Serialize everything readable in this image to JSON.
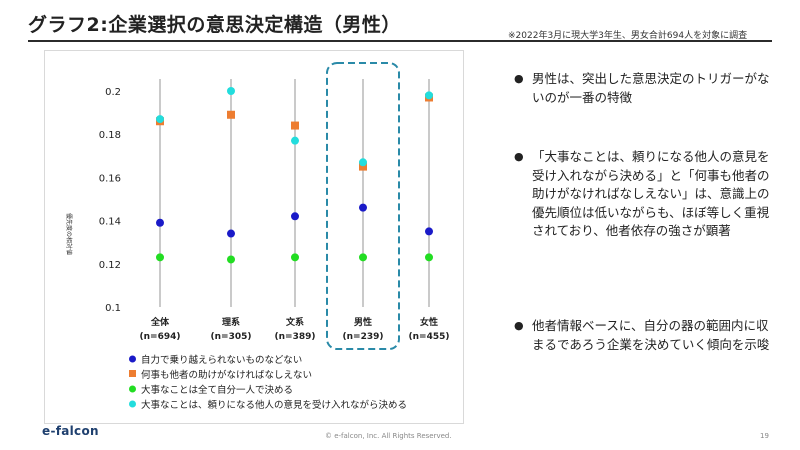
{
  "slide": {
    "title": "グラフ2:企業選択の意思決定構造（男性）",
    "note": "※2022年3月に現大学3年生、男女合計694人を対象に調査",
    "footer_logo": "e-falcon",
    "copyright": "© e-falcon, Inc. All Rights Reserved.",
    "page_number": "19"
  },
  "bullets": [
    "男性は、突出した意思決定のトリガーがないのが一番の特徴",
    "「大事なことは、頼りになる他人の意見を受け入れながら決める」と「何事も他者の助けがなければなしえない」は、意識上の優先順位は低いながらも、ほぼ等しく重視されており、他者依存の強さが顕著",
    "他者情報ベースに、自分の器の範囲内に収まるであろう企業を決めていく傾向を示唆"
  ],
  "chart_data": {
    "type": "scatter",
    "ylabel": "優先度の相対値",
    "ylim": [
      0.1,
      0.2
    ],
    "yticks": [
      "0.1",
      "0.12",
      "0.14",
      "0.16",
      "0.18",
      "0.2"
    ],
    "categories": [
      {
        "label": "全体",
        "n": "(n=694)"
      },
      {
        "label": "理系",
        "n": "(n=305)"
      },
      {
        "label": "文系",
        "n": "(n=389)"
      },
      {
        "label": "男性",
        "n": "(n=239)"
      },
      {
        "label": "女性",
        "n": "(n=455)"
      }
    ],
    "highlight_category": "男性",
    "highlight_color": "#2a8aa8",
    "series": [
      {
        "name": "自力で乗り越えられないものなどない",
        "color": "#1a1ac8",
        "shape": "circle",
        "values": [
          0.139,
          0.134,
          0.142,
          0.146,
          0.135
        ]
      },
      {
        "name": "何事も他者の助けがなければなしえない",
        "color": "#ed7d31",
        "shape": "square",
        "values": [
          0.186,
          0.189,
          0.184,
          0.165,
          0.197
        ]
      },
      {
        "name": "大事なことは全て自分一人で決める",
        "color": "#22dd22",
        "shape": "circle",
        "values": [
          0.123,
          0.122,
          0.123,
          0.123,
          0.123
        ]
      },
      {
        "name": "大事なことは、頼りになる他人の意見を受け入れながら決める",
        "color": "#22dddd",
        "shape": "circle",
        "values": [
          0.187,
          0.2,
          0.177,
          0.167,
          0.198
        ]
      }
    ]
  }
}
